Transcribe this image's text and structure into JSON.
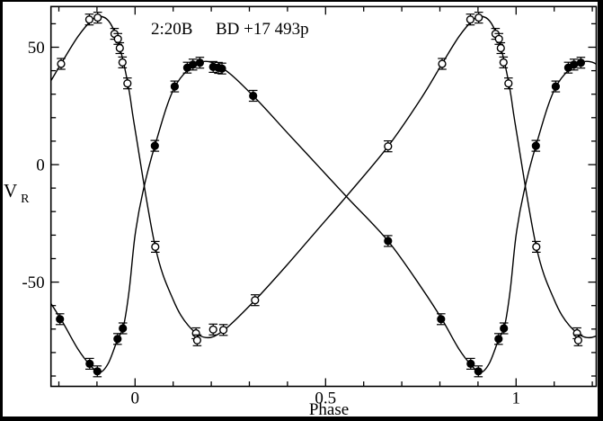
{
  "figure": {
    "background_color": "#ffffff",
    "border_color": "#000000",
    "ink_color": "#000000"
  },
  "chart_data": {
    "type": "scatter",
    "title": "2:20B  BD +17 493p",
    "title_left": "2:20B",
    "title_right": "BD +17 493p",
    "xlabel": "Phase",
    "ylabel": "V_R",
    "ylabel_main": "V",
    "ylabel_sub": "R",
    "xlim": [
      -0.2207,
      1.2104
    ],
    "ylim": [
      -94.4,
      67.3
    ],
    "grid": false,
    "legend": "none",
    "x_major_ticks": [
      {
        "value": 0,
        "label": "0"
      },
      {
        "value": 0.5,
        "label": "0.5"
      },
      {
        "value": 1,
        "label": "1"
      }
    ],
    "x_minor_tick_step": 0.1,
    "y_major_ticks": [
      {
        "value": 50,
        "label": "50"
      },
      {
        "value": 0,
        "label": "0"
      },
      {
        "value": -50,
        "label": "-50"
      }
    ],
    "y_minor_tick_step": 10,
    "error_bar_halfheight": 2.3,
    "series": [
      {
        "name": "primary-component",
        "marker": "filled-circle",
        "color": "#000000",
        "points": [
          [
            -0.197,
            -65.8
          ],
          [
            -0.119,
            -84.8
          ],
          [
            -0.099,
            -88.0
          ],
          [
            -0.046,
            -74.2
          ],
          [
            -0.032,
            -69.7
          ],
          [
            0.052,
            8.0
          ],
          [
            0.104,
            33.3
          ],
          [
            0.137,
            41.3
          ],
          [
            0.152,
            42.6
          ],
          [
            0.17,
            43.4
          ],
          [
            0.205,
            41.6
          ],
          [
            0.219,
            41.2
          ],
          [
            0.228,
            40.9
          ],
          [
            0.31,
            29.3
          ],
          [
            0.664,
            -32.5
          ],
          [
            0.803,
            -65.8
          ],
          [
            0.881,
            -84.8
          ],
          [
            0.901,
            -88.0
          ],
          [
            0.954,
            -74.2
          ],
          [
            0.968,
            -69.7
          ],
          [
            1.052,
            8.0
          ],
          [
            1.104,
            33.3
          ],
          [
            1.137,
            41.3
          ],
          [
            1.152,
            42.6
          ],
          [
            1.17,
            43.4
          ]
        ],
        "curve_anchors_one_period": [
          [
            0.0,
            -30
          ],
          [
            0.02,
            -12
          ],
          [
            0.052,
            8
          ],
          [
            0.104,
            33
          ],
          [
            0.17,
            43.5
          ],
          [
            0.23,
            41
          ],
          [
            0.31,
            29.3
          ],
          [
            0.4,
            13.5
          ],
          [
            0.48,
            -0.5
          ],
          [
            0.56,
            -14.5
          ],
          [
            0.664,
            -32.5
          ],
          [
            0.75,
            -52
          ],
          [
            0.806,
            -66
          ],
          [
            0.85,
            -78.5
          ],
          [
            0.883,
            -85.5
          ],
          [
            0.907,
            -88.5
          ],
          [
            0.93,
            -84.5
          ],
          [
            0.954,
            -74.5
          ],
          [
            0.97,
            -68.5
          ],
          [
            0.985,
            -53
          ]
        ]
      },
      {
        "name": "secondary-component",
        "marker": "open-circle",
        "color": "#000000",
        "points": [
          [
            -0.194,
            42.9
          ],
          [
            -0.12,
            61.8
          ],
          [
            -0.098,
            62.6
          ],
          [
            -0.054,
            55.7
          ],
          [
            -0.045,
            53.5
          ],
          [
            -0.04,
            49.6
          ],
          [
            -0.033,
            43.5
          ],
          [
            -0.02,
            34.6
          ],
          [
            0.053,
            -35.0
          ],
          [
            0.16,
            -71.8
          ],
          [
            0.163,
            -74.8
          ],
          [
            0.205,
            -70.2
          ],
          [
            0.232,
            -70.4
          ],
          [
            0.315,
            -57.7
          ],
          [
            0.664,
            7.8
          ],
          [
            0.806,
            42.9
          ],
          [
            0.88,
            61.8
          ],
          [
            0.902,
            62.6
          ],
          [
            0.946,
            55.7
          ],
          [
            0.955,
            53.5
          ],
          [
            0.96,
            49.6
          ],
          [
            0.967,
            43.5
          ],
          [
            0.98,
            34.6
          ],
          [
            1.053,
            -35.0
          ],
          [
            1.16,
            -71.8
          ],
          [
            1.163,
            -74.8
          ]
        ],
        "curve_anchors_one_period": [
          [
            0.0,
            15
          ],
          [
            0.053,
            -35
          ],
          [
            0.1,
            -57.5
          ],
          [
            0.14,
            -68.5
          ],
          [
            0.185,
            -73.6
          ],
          [
            0.233,
            -70.5
          ],
          [
            0.315,
            -57.7
          ],
          [
            0.4,
            -42.5
          ],
          [
            0.48,
            -27.5
          ],
          [
            0.56,
            -12.5
          ],
          [
            0.664,
            7.8
          ],
          [
            0.75,
            28
          ],
          [
            0.806,
            43
          ],
          [
            0.85,
            54.5
          ],
          [
            0.888,
            61.8
          ],
          [
            0.907,
            63.2
          ],
          [
            0.93,
            61.3
          ],
          [
            0.95,
            55
          ],
          [
            0.969,
            44
          ],
          [
            0.985,
            31
          ]
        ]
      }
    ]
  }
}
